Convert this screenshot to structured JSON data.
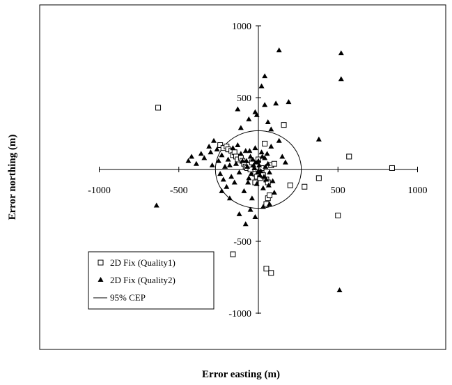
{
  "chart_data": {
    "type": "scatter",
    "xlabel": "Error easting (m)",
    "ylabel": "Error northing (m)",
    "xlim": [
      -1000,
      1000
    ],
    "ylim": [
      -1000,
      1000
    ],
    "x_ticks": [
      -1000,
      -500,
      0,
      500,
      1000
    ],
    "y_ticks": [
      -1000,
      -500,
      0,
      500,
      1000
    ],
    "x_tick_labels": [
      "-1000",
      "-500",
      "",
      "500",
      "1000"
    ],
    "y_tick_labels": [
      "-1000",
      "-500",
      "",
      "500",
      "1000"
    ],
    "grid": false,
    "legend_position": "lower-left",
    "legend": [
      {
        "label": "2D Fix (Quality1)",
        "marker": "square-open"
      },
      {
        "label": "2D Fix (Quality2)",
        "marker": "triangle-filled"
      },
      {
        "label": "95% CEP",
        "marker": "line"
      }
    ],
    "series": [
      {
        "name": "2D Fix (Quality1)",
        "marker": "square-open",
        "points": [
          [
            -630,
            430
          ],
          [
            -240,
            170
          ],
          [
            -220,
            150
          ],
          [
            -200,
            160
          ],
          [
            -190,
            140
          ],
          [
            -170,
            130
          ],
          [
            -160,
            100
          ],
          [
            -150,
            120
          ],
          [
            -140,
            90
          ],
          [
            -130,
            70
          ],
          [
            -110,
            80
          ],
          [
            -100,
            60
          ],
          [
            -90,
            40
          ],
          [
            -80,
            20
          ],
          [
            -70,
            10
          ],
          [
            -60,
            30
          ],
          [
            -40,
            50
          ],
          [
            -30,
            -10
          ],
          [
            -20,
            -30
          ],
          [
            -10,
            -50
          ],
          [
            10,
            -60
          ],
          [
            20,
            -20
          ],
          [
            30,
            -40
          ],
          [
            50,
            -70
          ],
          [
            60,
            -90
          ],
          [
            80,
            30
          ],
          [
            100,
            40
          ],
          [
            40,
            180
          ],
          [
            160,
            310
          ],
          [
            200,
            -110
          ],
          [
            290,
            -120
          ],
          [
            380,
            -60
          ],
          [
            500,
            -320
          ],
          [
            570,
            90
          ],
          [
            840,
            10
          ],
          [
            -20,
            -90
          ],
          [
            60,
            -200
          ],
          [
            50,
            -240
          ],
          [
            70,
            -180
          ],
          [
            -160,
            -590
          ],
          [
            50,
            -690
          ],
          [
            80,
            -720
          ],
          [
            0,
            70
          ],
          [
            -50,
            0
          ],
          [
            20,
            10
          ]
        ]
      },
      {
        "name": "2D Fix (Quality2)",
        "marker": "triangle-filled",
        "points": [
          [
            -640,
            -250
          ],
          [
            -440,
            60
          ],
          [
            -420,
            90
          ],
          [
            -390,
            40
          ],
          [
            -360,
            110
          ],
          [
            -340,
            80
          ],
          [
            -310,
            160
          ],
          [
            -300,
            120
          ],
          [
            -290,
            30
          ],
          [
            -280,
            200
          ],
          [
            -260,
            140
          ],
          [
            -250,
            60
          ],
          [
            -240,
            -30
          ],
          [
            -230,
            100
          ],
          [
            -220,
            -70
          ],
          [
            -210,
            20
          ],
          [
            -200,
            -120
          ],
          [
            -190,
            70
          ],
          [
            -180,
            30
          ],
          [
            -170,
            -50
          ],
          [
            -160,
            150
          ],
          [
            -150,
            -90
          ],
          [
            -140,
            40
          ],
          [
            -130,
            170
          ],
          [
            -120,
            -20
          ],
          [
            -110,
            110
          ],
          [
            -100,
            60
          ],
          [
            -90,
            -150
          ],
          [
            -80,
            130
          ],
          [
            -70,
            20
          ],
          [
            -60,
            -60
          ],
          [
            -50,
            90
          ],
          [
            -40,
            -200
          ],
          [
            -30,
            30
          ],
          [
            -20,
            150
          ],
          [
            -10,
            -100
          ],
          [
            0,
            60
          ],
          [
            10,
            -40
          ],
          [
            20,
            120
          ],
          [
            30,
            -130
          ],
          [
            40,
            80
          ],
          [
            50,
            -70
          ],
          [
            60,
            40
          ],
          [
            70,
            -20
          ],
          [
            80,
            160
          ],
          [
            -15,
            50
          ],
          [
            -25,
            10
          ],
          [
            5,
            30
          ],
          [
            15,
            -10
          ],
          [
            -5,
            -20
          ],
          [
            -35,
            70
          ],
          [
            25,
            90
          ],
          [
            35,
            -50
          ],
          [
            -45,
            -30
          ],
          [
            45,
            20
          ],
          [
            -55,
            130
          ],
          [
            55,
            110
          ],
          [
            -65,
            -90
          ],
          [
            65,
            -110
          ],
          [
            -75,
            60
          ],
          [
            -130,
            420
          ],
          [
            -110,
            290
          ],
          [
            -60,
            350
          ],
          [
            -20,
            400
          ],
          [
            -10,
            380
          ],
          [
            40,
            450
          ],
          [
            60,
            330
          ],
          [
            80,
            280
          ],
          [
            110,
            460
          ],
          [
            130,
            200
          ],
          [
            150,
            90
          ],
          [
            170,
            50
          ],
          [
            190,
            470
          ],
          [
            20,
            580
          ],
          [
            40,
            650
          ],
          [
            130,
            830
          ],
          [
            520,
            810
          ],
          [
            520,
            630
          ],
          [
            380,
            210
          ],
          [
            510,
            -840
          ],
          [
            -50,
            -280
          ],
          [
            -20,
            -330
          ],
          [
            -80,
            -380
          ],
          [
            -120,
            -310
          ],
          [
            -180,
            -200
          ],
          [
            -230,
            -150
          ],
          [
            30,
            -260
          ],
          [
            70,
            -240
          ],
          [
            100,
            -160
          ],
          [
            90,
            -80
          ]
        ]
      }
    ],
    "cep_95": {
      "name": "95% CEP",
      "center": [
        0,
        0
      ],
      "radius": 270
    }
  }
}
